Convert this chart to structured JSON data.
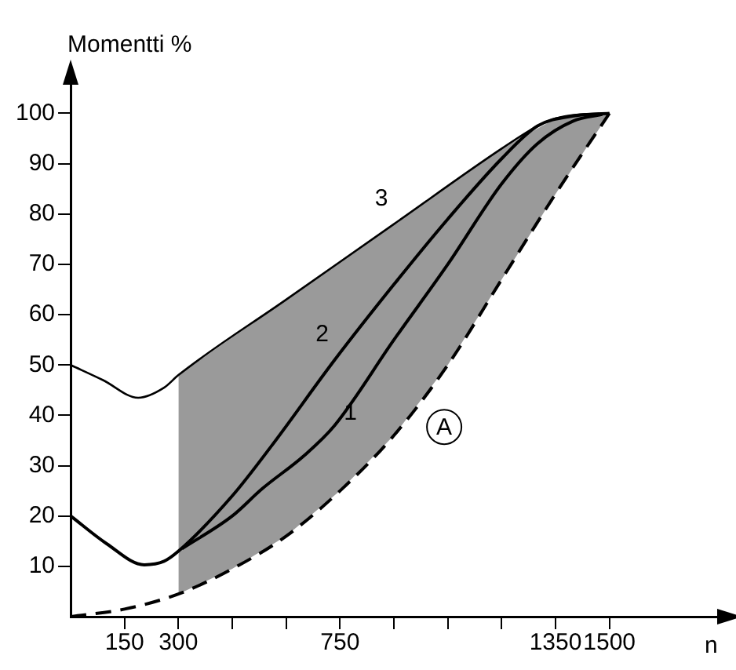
{
  "chart_data": {
    "type": "line",
    "ylabel": "Momentti %",
    "xlabel": "n",
    "xlim": [
      0,
      1800
    ],
    "ylim": [
      0,
      106
    ],
    "xticks": [
      {
        "value": 150,
        "label": "150"
      },
      {
        "value": 300,
        "label": "300"
      },
      {
        "value": 450,
        "label": null
      },
      {
        "value": 600,
        "label": null
      },
      {
        "value": 750,
        "label": "750"
      },
      {
        "value": 900,
        "label": null
      },
      {
        "value": 1050,
        "label": null
      },
      {
        "value": 1200,
        "label": null
      },
      {
        "value": 1350,
        "label": "1350"
      },
      {
        "value": 1500,
        "label": "1500"
      }
    ],
    "yticks": [
      10,
      20,
      30,
      40,
      50,
      60,
      70,
      80,
      90,
      100
    ],
    "grid": false,
    "legend": false,
    "marker": "none",
    "series": [
      {
        "name": "3",
        "color": "#000000",
        "x": [
          0,
          90,
          188,
          260,
          300,
          600,
          900,
          1200,
          1300,
          1350,
          1420,
          1500
        ],
        "values": [
          50,
          47,
          43.5,
          45.5,
          48,
          63,
          78,
          93,
          97.5,
          99,
          99.8,
          100
        ]
      },
      {
        "name": "2",
        "color": "#000000",
        "x": [
          0,
          100,
          205,
          260,
          300,
          450,
          560,
          735,
          900,
          1050,
          1200,
          1300,
          1400,
          1500
        ],
        "values": [
          20,
          14.5,
          10.3,
          11,
          13,
          24,
          34,
          51,
          66,
          79,
          91,
          97.5,
          99.5,
          100
        ]
      },
      {
        "name": "1",
        "color": "#000000",
        "x": [
          310,
          450,
          533,
          650,
          735,
          900,
          1050,
          1200,
          1300,
          1400,
          1480
        ],
        "values": [
          13.5,
          20,
          25.4,
          32,
          38,
          55,
          70,
          86,
          94,
          98.5,
          99.8
        ]
      },
      {
        "color": "#000000",
        "line_style": "dashed",
        "x": [
          0,
          150,
          300,
          450,
          600,
          750,
          900,
          1050,
          1200,
          1350,
          1500
        ],
        "values": [
          0,
          1.5,
          4.5,
          9.5,
          16,
          25,
          36,
          50,
          67,
          84,
          100
        ],
        "lower": [
          null,
          null,
          4.5,
          9.5,
          16,
          25,
          36,
          50,
          67,
          84,
          100
        ],
        "upper": [
          null,
          null,
          48,
          55.5,
          63,
          70.5,
          78,
          85.5,
          93,
          99,
          100
        ]
      }
    ],
    "annotations": [
      {
        "text": "A",
        "x": 1040,
        "y": 37.7
      }
    ]
  }
}
